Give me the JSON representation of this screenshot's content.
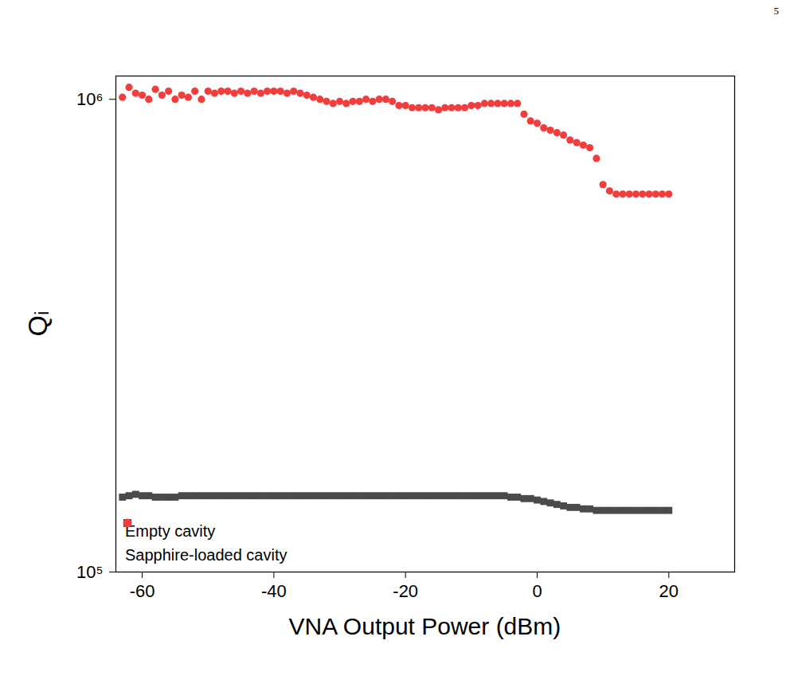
{
  "chart_data": {
    "type": "scatter",
    "page_label": "5",
    "x_label": "VNA Output Power (dBm)",
    "y_label": "Qᵢ",
    "log": "y",
    "grid": false,
    "legend": "lower left",
    "xlim": [
      -64,
      30
    ],
    "xticks": [
      -60,
      -40,
      -20,
      0,
      20
    ],
    "ylim": [
      100000,
      1120000
    ],
    "yticks": [
      {
        "value": 100000,
        "label": "10⁵"
      },
      {
        "value": 1000000,
        "label": "10⁶"
      }
    ],
    "x": [
      -63,
      -62,
      -61,
      -60,
      -59,
      -58,
      -57,
      -56,
      -55,
      -54,
      -53,
      -52,
      -51,
      -50,
      -49,
      -48,
      -47,
      -46,
      -45,
      -44,
      -43,
      -42,
      -41,
      -40,
      -39,
      -38,
      -37,
      -36,
      -35,
      -34,
      -33,
      -32,
      -31,
      -30,
      -29,
      -28,
      -27,
      -26,
      -25,
      -24,
      -23,
      -22,
      -21,
      -20,
      -19,
      -18,
      -17,
      -16,
      -15,
      -14,
      -13,
      -12,
      -11,
      -10,
      -9,
      -8,
      -7,
      -6,
      -5,
      -4,
      -3,
      -2,
      -1,
      0,
      1,
      2,
      3,
      4,
      5,
      6,
      7,
      8,
      9,
      10,
      11,
      12,
      13,
      14,
      15,
      16,
      17,
      18,
      19,
      20
    ],
    "series": [
      {
        "name": "Empty cavity",
        "color": "#4a4a4a",
        "marker": "square",
        "values": [
          144000,
          145000,
          146000,
          145000,
          145000,
          144000,
          144000,
          144000,
          144000,
          145000,
          145000,
          145000,
          145000,
          145000,
          145000,
          145000,
          145000,
          145000,
          145000,
          145000,
          145000,
          145000,
          145000,
          145000,
          145000,
          145000,
          145000,
          145000,
          145000,
          145000,
          145000,
          145000,
          145000,
          145000,
          145000,
          145000,
          145000,
          145000,
          145000,
          145000,
          145000,
          145000,
          145000,
          145000,
          145000,
          145000,
          145000,
          145000,
          145000,
          145000,
          145000,
          145000,
          145000,
          145000,
          145000,
          145000,
          145000,
          145000,
          145000,
          144000,
          144000,
          143000,
          143000,
          142000,
          141000,
          140000,
          139000,
          138000,
          137000,
          137000,
          136000,
          136000,
          135000,
          135000,
          135000,
          135000,
          135000,
          135000,
          135000,
          135000,
          135000,
          135000,
          135000,
          135000
        ]
      },
      {
        "name": "Sapphire-loaded cavity",
        "color": "#f23d3d",
        "marker": "circle",
        "values": [
          1010000,
          1060000,
          1030000,
          1020000,
          1000000,
          1050000,
          1020000,
          1040000,
          1000000,
          1020000,
          1010000,
          1040000,
          1000000,
          1040000,
          1030000,
          1040000,
          1040000,
          1030000,
          1040000,
          1030000,
          1040000,
          1030000,
          1040000,
          1040000,
          1040000,
          1030000,
          1040000,
          1030000,
          1020000,
          1010000,
          1000000,
          990000,
          980000,
          990000,
          980000,
          990000,
          990000,
          1000000,
          990000,
          1000000,
          1000000,
          990000,
          970000,
          970000,
          960000,
          960000,
          960000,
          960000,
          950000,
          960000,
          960000,
          960000,
          960000,
          970000,
          970000,
          980000,
          980000,
          980000,
          980000,
          980000,
          980000,
          930000,
          900000,
          890000,
          870000,
          860000,
          850000,
          840000,
          820000,
          810000,
          800000,
          790000,
          750000,
          660000,
          640000,
          630000,
          630000,
          630000,
          630000,
          630000,
          630000,
          630000,
          630000,
          630000
        ]
      }
    ]
  }
}
